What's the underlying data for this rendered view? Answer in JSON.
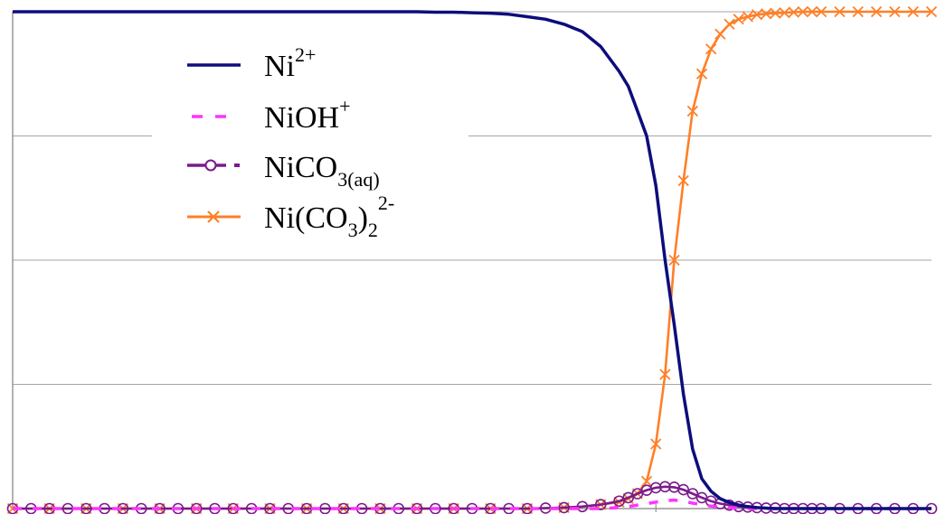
{
  "chart_data": {
    "type": "line",
    "title": "",
    "xlabel": "",
    "ylabel": "",
    "xlim": [
      0,
      100
    ],
    "ylim": [
      0,
      1
    ],
    "y_grid": [
      0,
      0.25,
      0.5,
      0.75,
      1
    ],
    "x_axis_tick": 70,
    "grid": true,
    "legend": {
      "placement": "top-left",
      "entries": [
        {
          "series": 0,
          "base": "Ni",
          "sup": "2+"
        },
        {
          "series": 1,
          "base": "NiOH",
          "sup": "+"
        },
        {
          "series": 2,
          "base": "NiCO",
          "sub": "3(aq)"
        },
        {
          "series": 3,
          "base": "Ni(CO",
          "sub": "3",
          "tail": ")",
          "sub2": "2",
          "sup": "2-"
        }
      ]
    },
    "x": [
      0,
      2,
      4,
      6,
      8,
      10,
      12,
      14,
      16,
      18,
      20,
      22,
      24,
      26,
      28,
      30,
      32,
      34,
      36,
      38,
      40,
      42,
      44,
      46,
      48,
      50,
      52,
      54,
      56,
      58,
      60,
      62,
      64,
      66,
      67,
      68,
      69,
      70,
      71,
      72,
      73,
      74,
      75,
      76,
      77,
      78,
      79,
      80,
      81,
      82,
      83,
      84,
      85,
      86,
      87,
      88,
      90,
      92,
      94,
      96,
      98,
      100
    ],
    "series": [
      {
        "label": "Ni2+",
        "color": "#0d0d7d",
        "style": "solid",
        "marker": "none",
        "values": [
          1,
          1,
          1,
          1,
          1,
          1,
          1,
          1,
          1,
          1,
          1,
          1,
          1,
          1,
          1,
          1,
          1,
          1,
          1,
          1,
          1,
          1,
          1,
          0.999,
          0.999,
          0.998,
          0.997,
          0.995,
          0.99,
          0.985,
          0.975,
          0.96,
          0.93,
          0.88,
          0.85,
          0.8,
          0.75,
          0.65,
          0.5,
          0.37,
          0.23,
          0.12,
          0.06,
          0.035,
          0.02,
          0.012,
          0.007,
          0.004,
          0.002,
          0.001,
          0,
          0,
          0,
          0,
          0,
          0,
          0,
          0,
          0,
          0,
          0,
          0
        ]
      },
      {
        "label": "NiOH+",
        "color": "#ff33ff",
        "style": "dashed",
        "marker": "none",
        "values": [
          0,
          0,
          0,
          0,
          0,
          0,
          0,
          0,
          0,
          0,
          0,
          0,
          0,
          0,
          0,
          0,
          0,
          0,
          0,
          0,
          0,
          0,
          0,
          0,
          0,
          0,
          0,
          0,
          0,
          0,
          0,
          0,
          0,
          0.002,
          0.004,
          0.007,
          0.01,
          0.013,
          0.016,
          0.017,
          0.015,
          0.011,
          0.008,
          0.005,
          0.003,
          0.002,
          0.001,
          0,
          0,
          0,
          0,
          0,
          0,
          0,
          0,
          0,
          0,
          0,
          0,
          0,
          0,
          0
        ]
      },
      {
        "label": "NiCO3(aq)",
        "color": "#7a1a8c",
        "style": "solid",
        "marker": "circle",
        "values": [
          0,
          0,
          0,
          0,
          0,
          0,
          0,
          0,
          0,
          0,
          0,
          0,
          0,
          0,
          0,
          0,
          0,
          0,
          0,
          0,
          0,
          0,
          0,
          0,
          0,
          0,
          0,
          0,
          0,
          0.001,
          0.002,
          0.004,
          0.008,
          0.015,
          0.022,
          0.03,
          0.037,
          0.042,
          0.044,
          0.043,
          0.038,
          0.03,
          0.022,
          0.015,
          0.01,
          0.007,
          0.004,
          0.003,
          0.002,
          0.001,
          0.001,
          0,
          0,
          0,
          0,
          0,
          0,
          0,
          0,
          0,
          0,
          0
        ]
      },
      {
        "label": "Ni(CO3)22-",
        "color": "#ff7f27",
        "style": "solid",
        "marker": "x",
        "values": [
          0,
          0,
          0,
          0,
          0,
          0,
          0,
          0,
          0,
          0,
          0,
          0,
          0,
          0,
          0,
          0,
          0,
          0,
          0,
          0,
          0,
          0,
          0,
          0,
          0,
          0,
          0,
          0,
          0,
          0.001,
          0.002,
          0.004,
          0.008,
          0.013,
          0.02,
          0.03,
          0.055,
          0.13,
          0.27,
          0.5,
          0.66,
          0.8,
          0.875,
          0.925,
          0.955,
          0.975,
          0.985,
          0.99,
          0.994,
          0.996,
          0.997,
          0.998,
          0.999,
          1,
          1,
          1,
          1,
          1,
          1,
          1,
          1,
          1
        ]
      }
    ]
  }
}
